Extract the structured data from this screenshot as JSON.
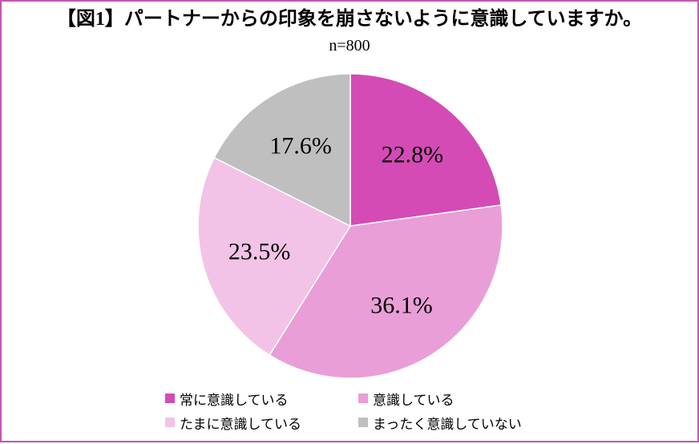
{
  "chart_data": {
    "type": "pie",
    "title": "【図1】パートナーからの印象を崩さないように意識していますか。",
    "subtitle": "n=800",
    "categories": [
      "常に意識している",
      "意識している",
      "たまに意識している",
      "まったく意識していない"
    ],
    "values": [
      22.8,
      36.1,
      23.5,
      17.6
    ],
    "data_labels": [
      "22.8%",
      "36.1%",
      "23.5%",
      "17.6%"
    ],
    "colors": [
      "#D44BB6",
      "#E99ED7",
      "#F2C3E6",
      "#BFBFBF"
    ],
    "legend": "bottom"
  }
}
